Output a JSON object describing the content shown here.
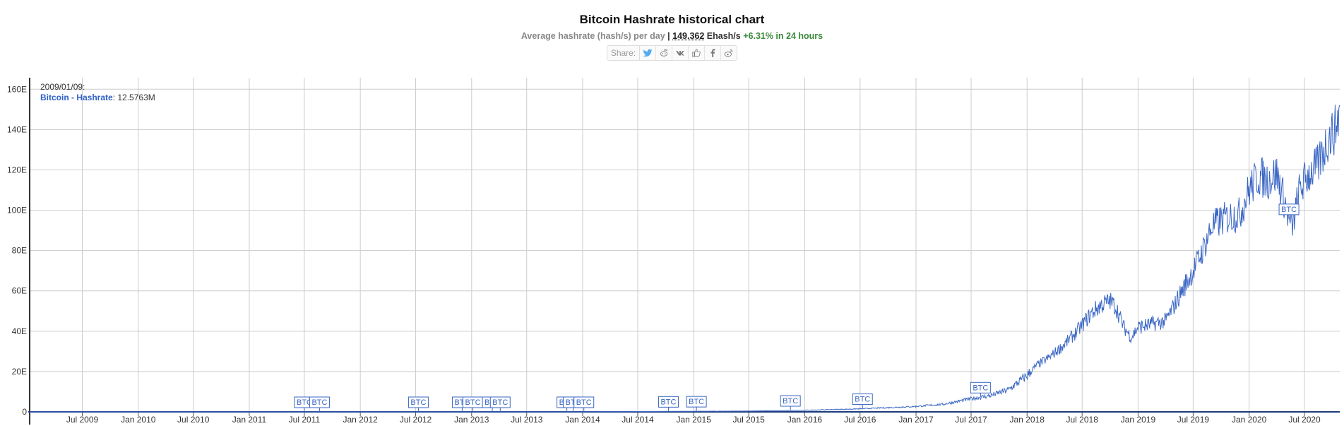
{
  "header": {
    "title": "Bitcoin Hashrate historical chart",
    "subtitle_prefix": "Average hashrate (hash/s) per day",
    "separator": "|",
    "current_value": "149.362",
    "current_unit": "Ehash/s",
    "change": "+6.31% in 24 hours"
  },
  "share": {
    "label": "Share:",
    "icons": [
      "twitter-icon",
      "reddit-icon",
      "vk-icon",
      "like-icon",
      "facebook-icon",
      "weibo-icon"
    ]
  },
  "colors": {
    "series": "#3a66c4",
    "grid": "#cccccc",
    "change": "#3b8a3b"
  },
  "chart_data": {
    "type": "line",
    "title": "Bitcoin Hashrate historical chart",
    "ylim": [
      0,
      165
    ],
    "y_ticks": [
      0,
      20,
      40,
      60,
      80,
      100,
      120,
      140,
      160
    ],
    "y_tick_labels": [
      "0",
      "20E",
      "40E",
      "60E",
      "80E",
      "100E",
      "120E",
      "140E",
      "160E"
    ],
    "x_range": [
      "2009-01-09",
      "2020-10-25"
    ],
    "x_ticks": [
      "2009-07-01",
      "2010-01-01",
      "2010-07-01",
      "2011-01-01",
      "2011-07-01",
      "2012-01-01",
      "2012-07-01",
      "2013-01-01",
      "2013-07-01",
      "2014-01-01",
      "2014-07-01",
      "2015-01-01",
      "2015-07-01",
      "2016-01-01",
      "2016-07-01",
      "2017-01-01",
      "2017-07-01",
      "2018-01-01",
      "2018-07-01",
      "2019-01-01",
      "2019-07-01",
      "2020-01-01",
      "2020-07-01"
    ],
    "x_tick_labels": [
      "Jul 2009",
      "Jan 2010",
      "Jul 2010",
      "Jan 2011",
      "Jul 2011",
      "Jan 2012",
      "Jul 2012",
      "Jan 2013",
      "Jul 2013",
      "Jan 2014",
      "Jul 2014",
      "Jan 2015",
      "Jul 2015",
      "Jan 2016",
      "Jul 2016",
      "Jan 2017",
      "Jul 2017",
      "Jan 2018",
      "Jul 2018",
      "Jan 2019",
      "Jul 2019",
      "Jan 2020",
      "Jul 2020"
    ],
    "grid": true,
    "series": [
      {
        "name": "Bitcoin - Hashrate",
        "unit": "Ehash/s",
        "points": [
          [
            "2009-01-09",
            0
          ],
          [
            "2014-01-01",
            0.01
          ],
          [
            "2015-01-01",
            0.3
          ],
          [
            "2015-07-01",
            0.4
          ],
          [
            "2016-01-01",
            0.8
          ],
          [
            "2016-07-01",
            1.5
          ],
          [
            "2017-01-01",
            2.7
          ],
          [
            "2017-04-01",
            3.8
          ],
          [
            "2017-07-01",
            6.5
          ],
          [
            "2017-09-01",
            8
          ],
          [
            "2017-11-01",
            11
          ],
          [
            "2018-01-01",
            18
          ],
          [
            "2018-02-01",
            23
          ],
          [
            "2018-03-15",
            27
          ],
          [
            "2018-05-01",
            33
          ],
          [
            "2018-06-15",
            40
          ],
          [
            "2018-08-01",
            49
          ],
          [
            "2018-09-01",
            53
          ],
          [
            "2018-10-01",
            55
          ],
          [
            "2018-10-20",
            52
          ],
          [
            "2018-11-15",
            42
          ],
          [
            "2018-12-10",
            37
          ],
          [
            "2019-01-01",
            42
          ],
          [
            "2019-02-01",
            43
          ],
          [
            "2019-03-01",
            44
          ],
          [
            "2019-04-01",
            45
          ],
          [
            "2019-05-01",
            53
          ],
          [
            "2019-06-01",
            62
          ],
          [
            "2019-07-01",
            70
          ],
          [
            "2019-08-01",
            80
          ],
          [
            "2019-09-01",
            92
          ],
          [
            "2019-10-01",
            95
          ],
          [
            "2019-11-01",
            97
          ],
          [
            "2019-12-01",
            98
          ],
          [
            "2020-01-01",
            110
          ],
          [
            "2020-02-01",
            117
          ],
          [
            "2020-03-01",
            115
          ],
          [
            "2020-04-01",
            118
          ],
          [
            "2020-05-01",
            102
          ],
          [
            "2020-05-20",
            90
          ],
          [
            "2020-06-15",
            110
          ],
          [
            "2020-07-15",
            118
          ],
          [
            "2020-08-15",
            122
          ],
          [
            "2020-09-15",
            135
          ],
          [
            "2020-10-10",
            140
          ],
          [
            "2020-10-25",
            149
          ]
        ]
      }
    ],
    "flags": [
      {
        "date": "2011-07-01",
        "label": "BTC"
      },
      {
        "date": "2011-08-20",
        "label": "BTC"
      },
      {
        "date": "2012-07-10",
        "label": "BTC"
      },
      {
        "date": "2012-12-01",
        "label": "BTC"
      },
      {
        "date": "2013-01-05",
        "label": "BTC"
      },
      {
        "date": "2013-03-10",
        "label": "BTC"
      },
      {
        "date": "2013-04-05",
        "label": "BTC"
      },
      {
        "date": "2013-11-10",
        "label": "BTC"
      },
      {
        "date": "2013-12-01",
        "label": "BTC"
      },
      {
        "date": "2014-01-05",
        "label": "BTC"
      },
      {
        "date": "2014-10-10",
        "label": "BTC"
      },
      {
        "date": "2015-01-10",
        "label": "BTC"
      },
      {
        "date": "2015-11-15",
        "label": "BTC"
      },
      {
        "date": "2016-07-09",
        "label": "BTC"
      },
      {
        "date": "2017-08-01",
        "label": "BTC"
      },
      {
        "date": "2020-05-11",
        "label": "BTC"
      }
    ],
    "tooltip": {
      "date": "2009/01/09:",
      "series": "Bitcoin - Hashrate",
      "value": "12.5763M"
    }
  }
}
